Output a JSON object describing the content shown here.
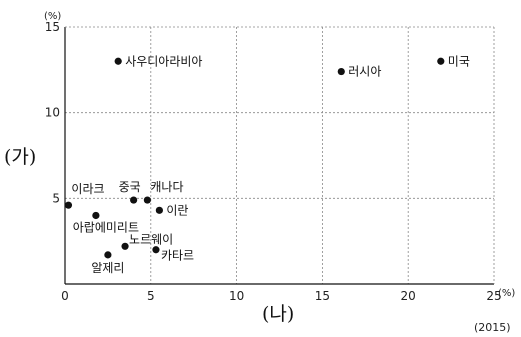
{
  "chart_data": {
    "type": "scatter",
    "x_axis": {
      "label": "(나)",
      "unit": "(%)",
      "min": 0,
      "max": 25,
      "ticks": [
        0,
        5,
        10,
        15,
        20,
        25
      ]
    },
    "y_axis": {
      "label": "(가)",
      "unit": "(%)",
      "min": 0,
      "max": 15,
      "ticks": [
        5,
        10,
        15
      ]
    },
    "year": "(2015)",
    "grid": "dashed",
    "points": [
      {
        "name": "사우디아라비아",
        "x": 3.1,
        "y": 13.0
      },
      {
        "name": "러시아",
        "x": 16.1,
        "y": 12.4
      },
      {
        "name": "미국",
        "x": 21.9,
        "y": 13.0
      },
      {
        "name": "이라크",
        "x": 0.2,
        "y": 4.6
      },
      {
        "name": "중국",
        "x": 4.0,
        "y": 4.9
      },
      {
        "name": "캐나다",
        "x": 4.8,
        "y": 4.9
      },
      {
        "name": "이란",
        "x": 5.5,
        "y": 4.3
      },
      {
        "name": "아랍에미리트",
        "x": 1.8,
        "y": 4.0
      },
      {
        "name": "노르웨이",
        "x": 3.5,
        "y": 2.2
      },
      {
        "name": "알제리",
        "x": 2.5,
        "y": 1.7
      },
      {
        "name": "카타르",
        "x": 5.3,
        "y": 2.0
      }
    ]
  }
}
